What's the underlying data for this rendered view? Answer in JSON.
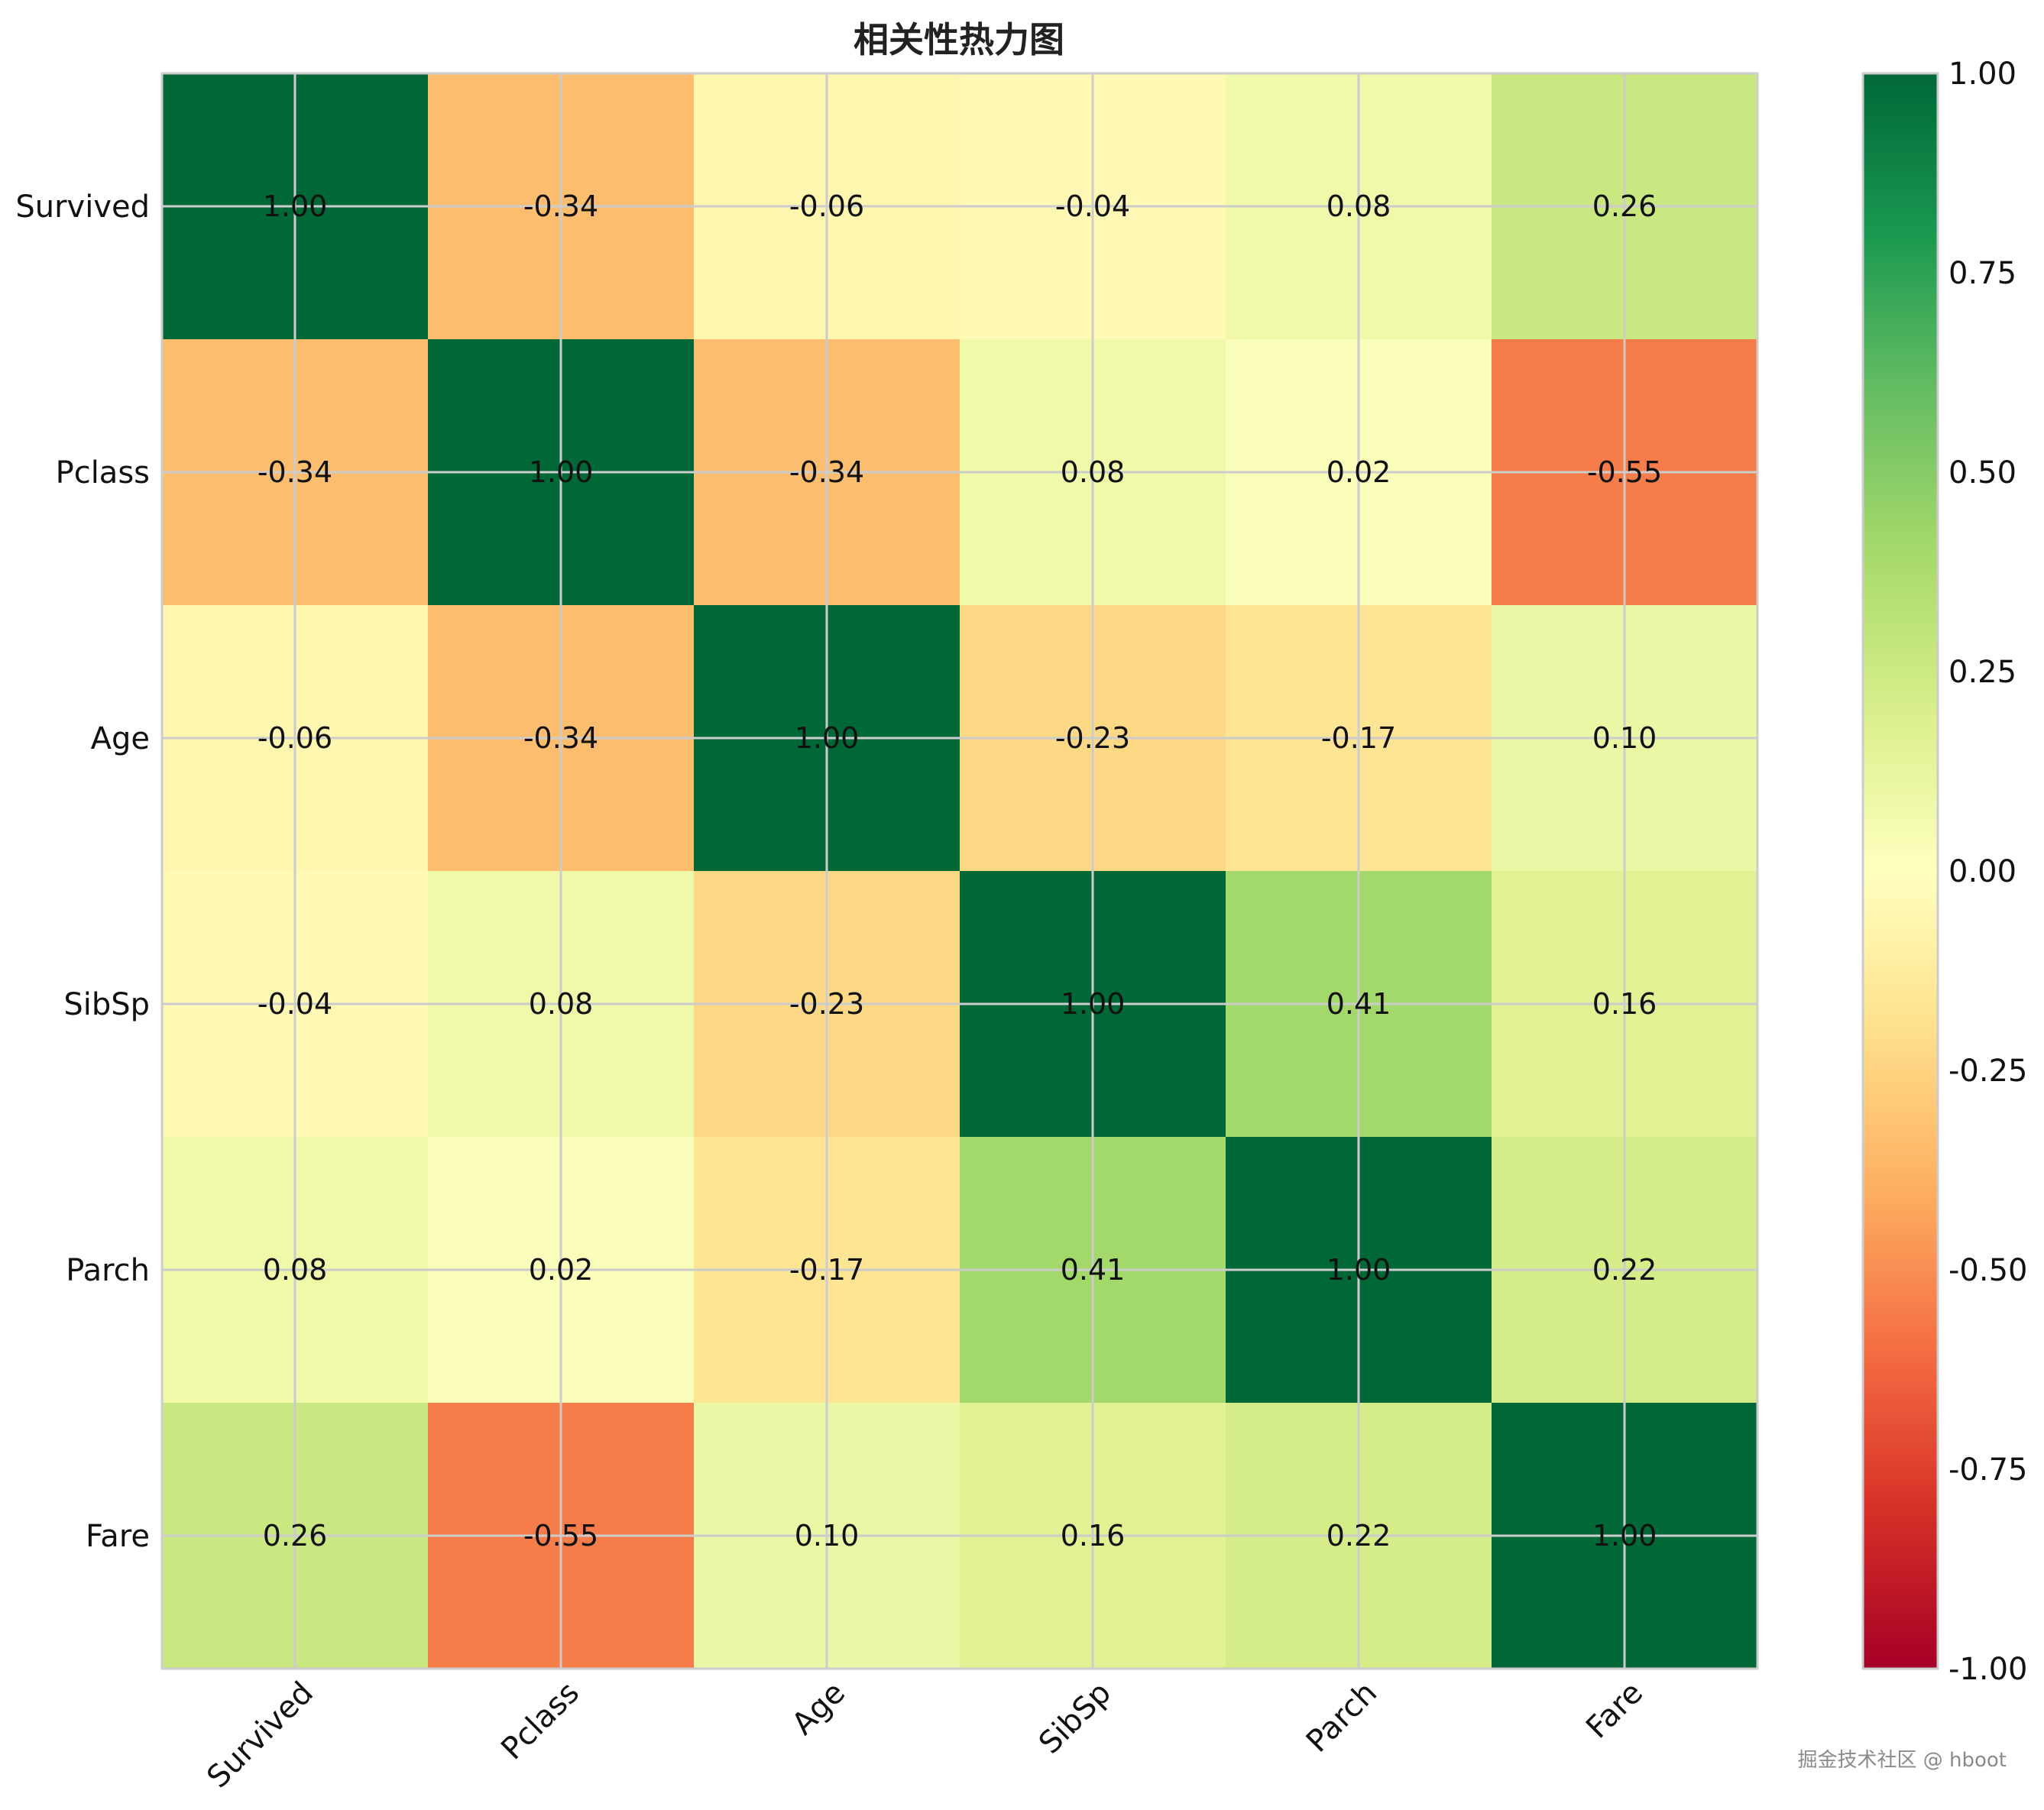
{
  "chart_data": {
    "type": "heatmap",
    "title": "相关性热力图",
    "rows": [
      "Survived",
      "Pclass",
      "Age",
      "SibSp",
      "Parch",
      "Fare"
    ],
    "columns": [
      "Survived",
      "Pclass",
      "Age",
      "SibSp",
      "Parch",
      "Fare"
    ],
    "values": [
      [
        1.0,
        -0.34,
        -0.06,
        -0.04,
        0.08,
        0.26
      ],
      [
        -0.34,
        1.0,
        -0.34,
        0.08,
        0.02,
        -0.55
      ],
      [
        -0.06,
        -0.34,
        1.0,
        -0.23,
        -0.17,
        0.1
      ],
      [
        -0.04,
        0.08,
        -0.23,
        1.0,
        0.41,
        0.16
      ],
      [
        0.08,
        0.02,
        -0.17,
        0.41,
        1.0,
        0.22
      ],
      [
        0.26,
        -0.55,
        0.1,
        0.16,
        0.22,
        1.0
      ]
    ],
    "value_format": "0.00",
    "colormap": "RdYlGn",
    "vmin": -1.0,
    "vmax": 1.0,
    "colorbar_ticks": [
      "1.00",
      "0.75",
      "0.50",
      "0.25",
      "0.00",
      "-0.25",
      "-0.50",
      "-0.75",
      "-1.00"
    ],
    "x_tick_rotation_deg": 45,
    "grid": true,
    "grid_color": "#cccccc"
  },
  "watermark": "掘金技术社区 @ hboot"
}
